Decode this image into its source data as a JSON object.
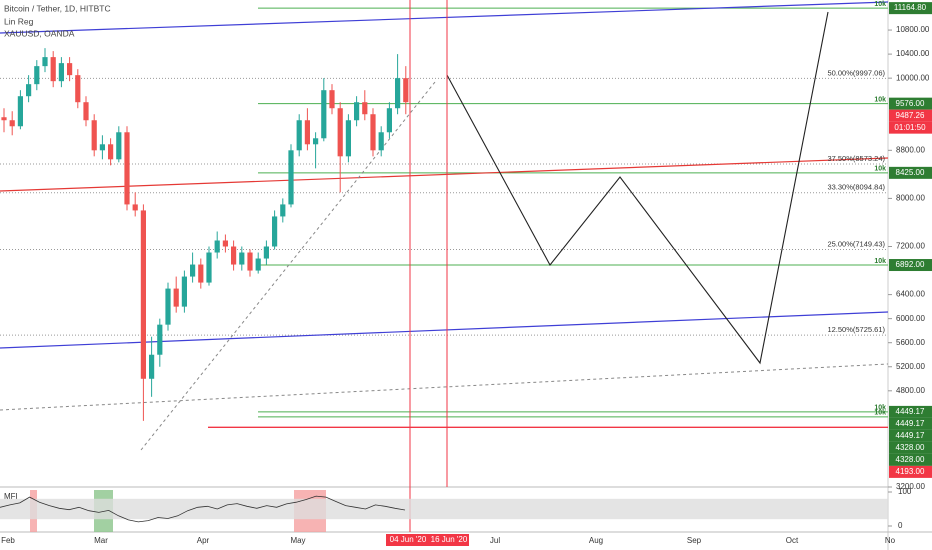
{
  "header": {
    "symbol": "Bitcoin / Tether, 1D, HITBTC",
    "indicator": "Lin Reg",
    "compare": "XAUUSD, OANDA"
  },
  "price_scale": {
    "ylim": [
      3200,
      11300
    ],
    "ticks": [
      {
        "value": 10800,
        "label": "10800.00"
      },
      {
        "value": 10400,
        "label": "10400.00"
      },
      {
        "value": 10000,
        "label": "10000.00"
      },
      {
        "value": 8800,
        "label": "8800.00"
      },
      {
        "value": 8000,
        "label": "8000.00"
      },
      {
        "value": 7200,
        "label": "7200.00"
      },
      {
        "value": 6400,
        "label": "6400.00"
      },
      {
        "value": 6000,
        "label": "6000.00"
      },
      {
        "value": 5600,
        "label": "5600.00"
      },
      {
        "value": 5200,
        "label": "5200.00"
      },
      {
        "value": 4800,
        "label": "4800.00"
      },
      {
        "value": 3200,
        "label": "3200.00"
      }
    ],
    "badges": [
      {
        "value": 11164.8,
        "label": "11164.80",
        "color": "#2e7d32"
      },
      {
        "value": 9576,
        "label": "9576.00",
        "color": "#2e7d32"
      },
      {
        "value": 9487.26,
        "label": "9487.26",
        "color": "#f23645"
      },
      {
        "label": "01:01:50",
        "color": "#f23645"
      },
      {
        "value": 8425,
        "label": "8425.00",
        "color": "#2e7d32"
      },
      {
        "value": 6892,
        "label": "6892.00",
        "color": "#2e7d32"
      },
      {
        "value": 4449.17,
        "label": "4449.17",
        "color": "#2e7d32"
      },
      {
        "value": 4449.17,
        "label": "4449.17",
        "color": "#2e7d32"
      },
      {
        "value": 4449.17,
        "label": "4449.17",
        "color": "#2e7d32"
      },
      {
        "value": 4328,
        "label": "4328.00",
        "color": "#2e7d32"
      },
      {
        "value": 4328,
        "label": "4328.00",
        "color": "#2e7d32"
      },
      {
        "value": 4193,
        "label": "4193.00",
        "color": "#f23645"
      }
    ]
  },
  "fib_levels": [
    {
      "value": 9997.06,
      "label": "50.00%(9997.06)"
    },
    {
      "value": 8573.24,
      "label": "37.50%(8573.24)"
    },
    {
      "value": 8094.84,
      "label": "33.30%(8094.84)"
    },
    {
      "value": 7149.43,
      "label": "25.00%(7149.43)"
    },
    {
      "value": 5725.61,
      "label": "12.50%(5725.61)"
    }
  ],
  "green_levels": [
    {
      "value": 11164.8,
      "label": "10k"
    },
    {
      "value": 9576,
      "label": "10k"
    },
    {
      "value": 8425,
      "label": "10k"
    },
    {
      "value": 6892,
      "label": "10k"
    },
    {
      "value": 4449.17,
      "label": "10k"
    },
    {
      "value": 4449.17,
      "label": "10k"
    }
  ],
  "red_level": 4193,
  "candles": [
    [
      9350,
      9500,
      9100,
      9300
    ],
    [
      9300,
      9450,
      9050,
      9200
    ],
    [
      9200,
      9800,
      9150,
      9700
    ],
    [
      9700,
      10050,
      9600,
      9900
    ],
    [
      9900,
      10300,
      9800,
      10200
    ],
    [
      10200,
      10500,
      10100,
      10350
    ],
    [
      10350,
      10450,
      9850,
      9950
    ],
    [
      9950,
      10350,
      9850,
      10250
    ],
    [
      10250,
      10350,
      9950,
      10050
    ],
    [
      10050,
      10150,
      9500,
      9600
    ],
    [
      9600,
      9700,
      9200,
      9300
    ],
    [
      9300,
      9400,
      8700,
      8800
    ],
    [
      8800,
      9050,
      8650,
      8900
    ],
    [
      8900,
      9000,
      8550,
      8650
    ],
    [
      8650,
      9200,
      8600,
      9100
    ],
    [
      9100,
      9200,
      7800,
      7900
    ],
    [
      7900,
      8100,
      7700,
      7800
    ],
    [
      7800,
      7900,
      4300,
      5000
    ],
    [
      5000,
      5700,
      4700,
      5400
    ],
    [
      5400,
      6000,
      5200,
      5900
    ],
    [
      5900,
      6600,
      5800,
      6500
    ],
    [
      6500,
      6700,
      6100,
      6200
    ],
    [
      6200,
      6800,
      6100,
      6700
    ],
    [
      6700,
      7100,
      6600,
      6900
    ],
    [
      6900,
      7000,
      6500,
      6600
    ],
    [
      6600,
      7200,
      6550,
      7100
    ],
    [
      7100,
      7450,
      7000,
      7300
    ],
    [
      7300,
      7400,
      7100,
      7200
    ],
    [
      7200,
      7300,
      6800,
      6900
    ],
    [
      6900,
      7200,
      6800,
      7100
    ],
    [
      7100,
      7150,
      6700,
      6800
    ],
    [
      6800,
      7100,
      6750,
      7000
    ],
    [
      7000,
      7300,
      6900,
      7200
    ],
    [
      7200,
      7800,
      7150,
      7700
    ],
    [
      7700,
      8000,
      7600,
      7900
    ],
    [
      7900,
      8900,
      7850,
      8800
    ],
    [
      8800,
      9400,
      8700,
      9300
    ],
    [
      9300,
      9500,
      8800,
      8900
    ],
    [
      8900,
      9100,
      8500,
      9000
    ],
    [
      9000,
      10000,
      8950,
      9800
    ],
    [
      9800,
      9900,
      9400,
      9500
    ],
    [
      9500,
      9600,
      8100,
      8700
    ],
    [
      8700,
      9400,
      8600,
      9300
    ],
    [
      9300,
      9700,
      9200,
      9600
    ],
    [
      9600,
      9800,
      9300,
      9400
    ],
    [
      9400,
      9500,
      8700,
      8800
    ],
    [
      8800,
      9200,
      8700,
      9100
    ],
    [
      9100,
      9600,
      9000,
      9500
    ],
    [
      9500,
      10400,
      9400,
      10000
    ],
    [
      10000,
      10200,
      9400,
      9600
    ]
  ],
  "candle_colors": {
    "up": "#26a69a",
    "down": "#ef5350"
  },
  "mfi": {
    "label": "MFI",
    "ylim": [
      0,
      100
    ],
    "ticks": [
      100,
      0
    ],
    "band": [
      20,
      80
    ],
    "color": "#333333",
    "values": [
      55,
      62,
      68,
      85,
      70,
      60,
      52,
      48,
      55,
      45,
      40,
      46,
      30,
      18,
      12,
      16,
      25,
      22,
      30,
      45,
      55,
      58,
      50,
      62,
      66,
      58,
      52,
      60,
      55,
      65,
      70,
      78,
      88,
      85,
      72,
      60,
      55,
      50,
      62,
      58,
      52,
      47
    ]
  },
  "time_axis": [
    "Feb",
    "Mar",
    "Apr",
    "May",
    "Jul",
    "Aug",
    "Sep",
    "Oct",
    "No"
  ],
  "date_badges": [
    "04 Jun '20",
    "16 Jun '20"
  ]
}
